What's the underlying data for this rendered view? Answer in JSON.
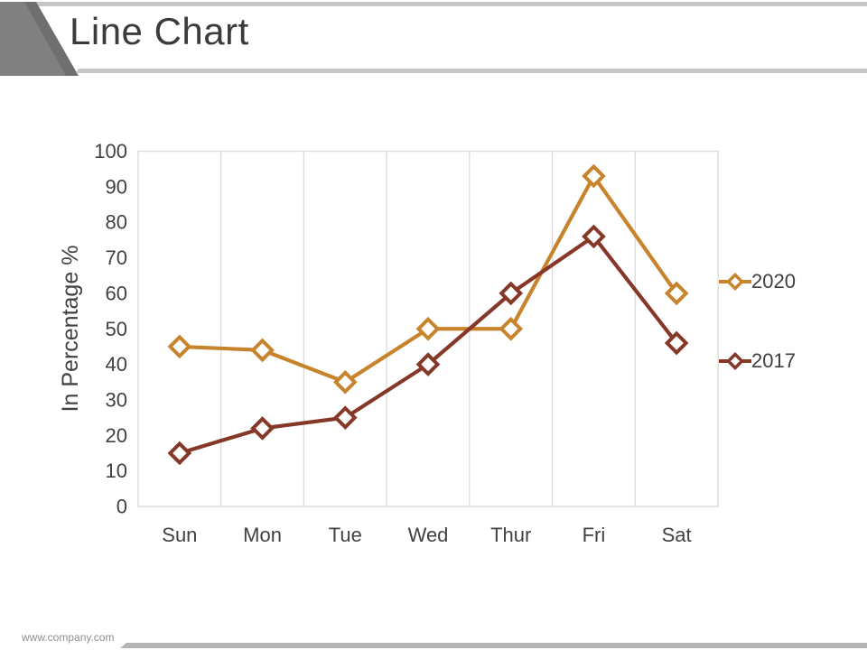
{
  "slide": {
    "title": "Line Chart",
    "footer": "www.company.com"
  },
  "colors": {
    "accent_2020": "#C8842D",
    "accent_2017": "#853828",
    "gridline": "#D9D9D9",
    "axis_text": "#414141",
    "title_text": "#3B3B3B",
    "legend_text": "#3F3F3F",
    "header_triangle": "#808080",
    "header_triangle_shadow": "#6F6F6F",
    "header_bar": "#C6C6C6",
    "footer_bar": "#B5B5B5",
    "footer_text": "#8F8F8F"
  },
  "chart_data": {
    "type": "line",
    "categories": [
      "Sun",
      "Mon",
      "Tue",
      "Wed",
      "Thur",
      "Fri",
      "Sat"
    ],
    "series": [
      {
        "name": "2020",
        "color": "#C8842D",
        "values": [
          45,
          44,
          35,
          50,
          50,
          93,
          60
        ]
      },
      {
        "name": "2017",
        "color": "#853828",
        "values": [
          15,
          22,
          25,
          40,
          60,
          76,
          46
        ]
      }
    ],
    "title": "Line Chart",
    "xlabel": "",
    "ylabel": "In Percentage %",
    "ylim": [
      0,
      100
    ],
    "ytick_step": 10,
    "yticks": [
      0,
      10,
      20,
      30,
      40,
      50,
      60,
      70,
      80,
      90,
      100
    ],
    "grid": "vertical-only",
    "legend_position": "right",
    "marker": "diamond-open-white-fill"
  }
}
